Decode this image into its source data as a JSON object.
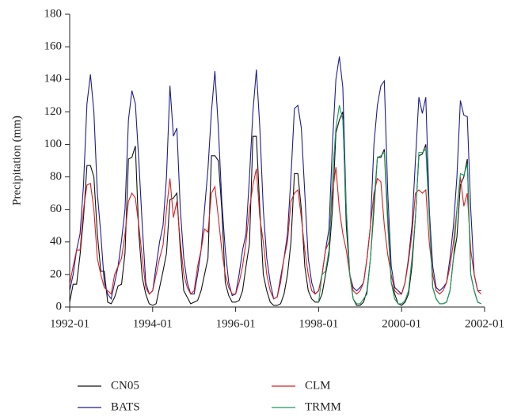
{
  "chart_data": {
    "type": "line",
    "y_label": "Precipitation (mm)",
    "x": [
      "1992-01",
      "1992-02",
      "1992-03",
      "1992-04",
      "1992-05",
      "1992-06",
      "1992-07",
      "1992-08",
      "1992-09",
      "1992-10",
      "1992-11",
      "1992-12",
      "1993-01",
      "1993-02",
      "1993-03",
      "1993-04",
      "1993-05",
      "1993-06",
      "1993-07",
      "1993-08",
      "1993-09",
      "1993-10",
      "1993-11",
      "1993-12",
      "1994-01",
      "1994-02",
      "1994-03",
      "1994-04",
      "1994-05",
      "1994-06",
      "1994-07",
      "1994-08",
      "1994-09",
      "1994-10",
      "1994-11",
      "1994-12",
      "1995-01",
      "1995-02",
      "1995-03",
      "1995-04",
      "1995-05",
      "1995-06",
      "1995-07",
      "1995-08",
      "1995-09",
      "1995-10",
      "1995-11",
      "1995-12",
      "1996-01",
      "1996-02",
      "1996-03",
      "1996-04",
      "1996-05",
      "1996-06",
      "1996-07",
      "1996-08",
      "1996-09",
      "1996-10",
      "1996-11",
      "1996-12",
      "1997-01",
      "1997-02",
      "1997-03",
      "1997-04",
      "1997-05",
      "1997-06",
      "1997-07",
      "1997-08",
      "1997-09",
      "1997-10",
      "1997-11",
      "1997-12",
      "1998-01",
      "1998-02",
      "1998-03",
      "1998-04",
      "1998-05",
      "1998-06",
      "1998-07",
      "1998-08",
      "1998-09",
      "1998-10",
      "1998-11",
      "1998-12",
      "1999-01",
      "1999-02",
      "1999-03",
      "1999-04",
      "1999-05",
      "1999-06",
      "1999-07",
      "1999-08",
      "1999-09",
      "1999-10",
      "1999-11",
      "1999-12",
      "2000-01",
      "2000-02",
      "2000-03",
      "2000-04",
      "2000-05",
      "2000-06",
      "2000-07",
      "2000-08",
      "2000-09",
      "2000-10",
      "2000-11",
      "2000-12",
      "2001-01",
      "2001-02",
      "2001-03",
      "2001-04",
      "2001-05",
      "2001-06",
      "2001-07",
      "2001-08",
      "2001-09",
      "2001-10",
      "2001-11",
      "2001-12"
    ],
    "series": [
      {
        "name": "CN05",
        "color": "#111111",
        "values": [
          3,
          14,
          14,
          32,
          55,
          87,
          87,
          80,
          45,
          22,
          22,
          3,
          2,
          6,
          13,
          14,
          33,
          91,
          92,
          99,
          45,
          18,
          8,
          2,
          1,
          2,
          12,
          22,
          33,
          66,
          67,
          70,
          35,
          10,
          6,
          2,
          3,
          4,
          10,
          20,
          30,
          93,
          93,
          90,
          60,
          15,
          7,
          3,
          3,
          4,
          10,
          25,
          39,
          105,
          105,
          60,
          20,
          10,
          3,
          1,
          1,
          2,
          8,
          20,
          40,
          82,
          82,
          60,
          25,
          10,
          5,
          3,
          3,
          8,
          20,
          32,
          60,
          107,
          115,
          120,
          50,
          20,
          5,
          1,
          1,
          3,
          10,
          30,
          60,
          92,
          92,
          97,
          55,
          15,
          8,
          2,
          1,
          3,
          8,
          25,
          55,
          93,
          94,
          100,
          60,
          12,
          5,
          2,
          2,
          3,
          10,
          30,
          43,
          75,
          80,
          91,
          20,
          10,
          3,
          2
        ]
      },
      {
        "name": "BATS",
        "color": "#1c1c8e",
        "values": [
          10,
          20,
          35,
          45,
          75,
          125,
          143,
          120,
          70,
          45,
          15,
          8,
          5,
          15,
          25,
          41,
          60,
          115,
          133,
          125,
          90,
          50,
          15,
          8,
          10,
          25,
          40,
          50,
          80,
          136,
          105,
          110,
          60,
          30,
          15,
          8,
          8,
          20,
          35,
          60,
          85,
          120,
          145,
          110,
          65,
          35,
          15,
          7,
          8,
          20,
          35,
          45,
          80,
          120,
          146,
          110,
          60,
          30,
          15,
          5,
          6,
          18,
          30,
          45,
          80,
          122,
          124,
          110,
          70,
          30,
          15,
          8,
          10,
          20,
          35,
          48,
          100,
          140,
          154,
          135,
          60,
          20,
          12,
          10,
          12,
          15,
          30,
          50,
          100,
          124,
          136,
          139,
          70,
          25,
          12,
          10,
          8,
          15,
          30,
          50,
          90,
          129,
          119,
          129,
          60,
          25,
          12,
          10,
          12,
          15,
          30,
          50,
          80,
          127,
          118,
          117,
          60,
          20,
          10,
          10
        ]
      },
      {
        "name": "CLM",
        "color": "#d42020",
        "values": [
          14,
          25,
          35,
          35,
          60,
          75,
          76,
          60,
          30,
          20,
          12,
          10,
          8,
          20,
          25,
          30,
          45,
          65,
          70,
          67,
          50,
          30,
          12,
          8,
          10,
          20,
          30,
          38,
          60,
          79,
          55,
          65,
          40,
          20,
          12,
          8,
          10,
          25,
          35,
          48,
          46,
          70,
          74,
          55,
          35,
          20,
          12,
          8,
          8,
          15,
          25,
          40,
          60,
          75,
          85,
          55,
          40,
          20,
          10,
          5,
          6,
          15,
          30,
          40,
          65,
          70,
          72,
          55,
          35,
          20,
          10,
          8,
          10,
          20,
          35,
          40,
          70,
          86,
          60,
          45,
          35,
          20,
          10,
          8,
          10,
          15,
          30,
          50,
          70,
          79,
          77,
          50,
          32,
          20,
          10,
          8,
          8,
          15,
          28,
          45,
          70,
          72,
          70,
          72,
          40,
          20,
          10,
          8,
          10,
          15,
          25,
          40,
          60,
          80,
          62,
          70,
          35,
          20,
          10,
          8
        ]
      },
      {
        "name": "TRMM",
        "color": "#1a9a5a",
        "values": [
          null,
          null,
          null,
          null,
          null,
          null,
          null,
          null,
          null,
          null,
          null,
          null,
          null,
          null,
          null,
          null,
          null,
          null,
          null,
          null,
          null,
          null,
          null,
          null,
          null,
          null,
          null,
          null,
          null,
          null,
          null,
          null,
          null,
          null,
          null,
          null,
          null,
          null,
          null,
          null,
          null,
          null,
          null,
          null,
          null,
          null,
          null,
          null,
          null,
          null,
          null,
          null,
          null,
          null,
          null,
          null,
          null,
          null,
          null,
          null,
          null,
          null,
          null,
          null,
          null,
          null,
          null,
          null,
          null,
          null,
          null,
          null,
          3,
          20,
          22,
          35,
          80,
          110,
          124,
          115,
          60,
          20,
          5,
          2,
          2,
          5,
          8,
          30,
          65,
          92,
          93,
          95,
          50,
          15,
          5,
          2,
          2,
          4,
          10,
          30,
          55,
          95,
          95,
          97,
          55,
          12,
          5,
          2,
          2,
          3,
          10,
          30,
          60,
          82,
          81,
          88,
          20,
          10,
          3,
          2
        ]
      }
    ],
    "xlim": [
      "1992-01",
      "2002-01"
    ],
    "xticks": [
      "1992-01",
      "1994-01",
      "1996-01",
      "1998-01",
      "2000-01",
      "2002-01"
    ],
    "ylim": [
      0,
      180
    ],
    "yticks": [
      0,
      20,
      40,
      60,
      80,
      100,
      120,
      140,
      160,
      180
    ],
    "legend": "bottom"
  }
}
